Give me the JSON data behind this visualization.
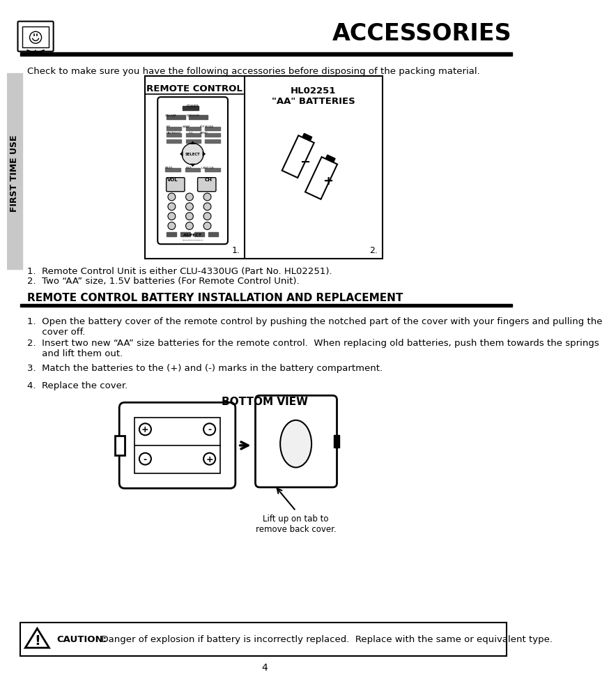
{
  "title": "ACCESSORIES",
  "bg_color": "#ffffff",
  "sidebar_color": "#c8c8c8",
  "sidebar_text": "FIRST TIME USE",
  "header_intro": "Check to make sure you have the following accessories before disposing of the packing material.",
  "col1_header": "REMOTE CONTROL",
  "col2_header": "HL02251\n\"AA\" BATTERIES",
  "footnote1": "1.  Remote Control Unit is either CLU-4330UG (Part No. HL02251).",
  "footnote2": "2.  Two “AA” size, 1.5V batteries (For Remote Control Unit).",
  "section2_title": "REMOTE CONTROL BATTERY INSTALLATION AND REPLACEMENT",
  "step1": "1.  Open the battery cover of the remote control by pushing the notched part of the cover with your fingers and pulling the\n     cover off.",
  "step2": "2.  Insert two new “AA” size batteries for the remote control.  When replacing old batteries, push them towards the springs\n     and lift them out.",
  "step3": "3.  Match the batteries to the (+) and (-) marks in the battery compartment.",
  "step4": "4.  Replace the cover.",
  "bottom_view_title": "BOTTOM VIEW",
  "lift_label": "Lift up on tab to\nremove back cover.",
  "caution_text": "  Danger of explosion if battery is incorrectly replaced.  Replace with the same or equivalent type.",
  "caution_bold": "CAUTION:",
  "page_number": "4"
}
